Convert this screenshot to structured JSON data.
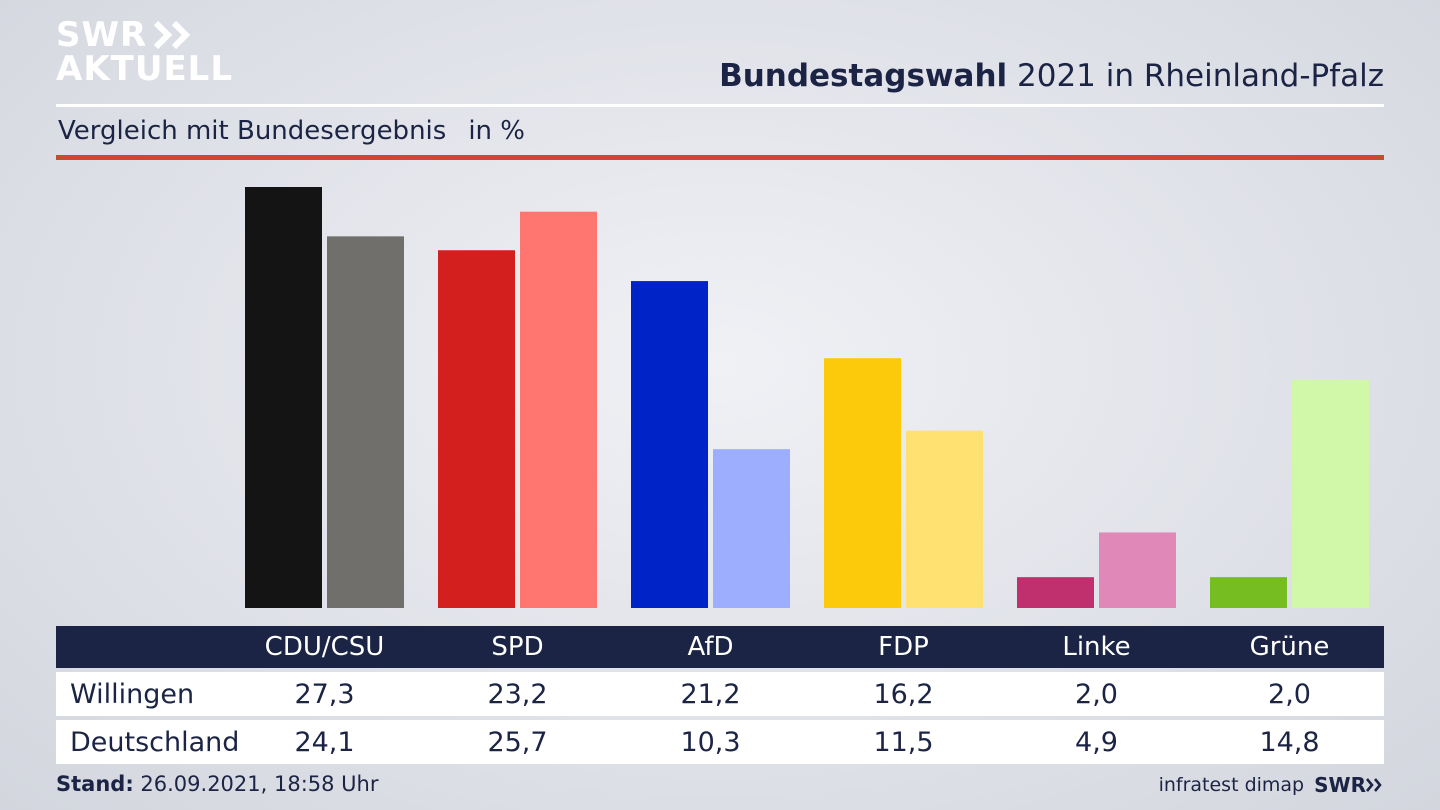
{
  "logo": {
    "line1": "SWR",
    "line2": "AKTUELL"
  },
  "header": {
    "title_bold": "Bundestagswahl",
    "title_rest": " 2021 in Rheinland-Pfalz"
  },
  "subtitle": {
    "text": "Vergleich mit Bundesergebnis",
    "unit": "in %"
  },
  "colors": {
    "navy": "#1b2444",
    "accent_red": "#d2452f"
  },
  "chart_data": {
    "type": "bar",
    "categories": [
      "CDU/CSU",
      "SPD",
      "AfD",
      "FDP",
      "Linke",
      "Grüne"
    ],
    "series": [
      {
        "name": "Willingen",
        "values": [
          27.3,
          23.2,
          21.2,
          16.2,
          2.0,
          2.0
        ],
        "colors": [
          "#141414",
          "#d41f1f",
          "#0023c7",
          "#fdc90b",
          "#c0306f",
          "#76bd22"
        ]
      },
      {
        "name": "Deutschland",
        "values": [
          24.1,
          25.7,
          10.3,
          11.5,
          4.9,
          14.8
        ],
        "colors": [
          "#706f6c",
          "#ff7670",
          "#9eaeff",
          "#fee170",
          "#e089b8",
          "#d1f7a9"
        ]
      }
    ],
    "value_labels": [
      [
        "27,3",
        "23,2",
        "21,2",
        "16,2",
        "2,0",
        "2,0"
      ],
      [
        "24,1",
        "25,7",
        "10,3",
        "11,5",
        "4,9",
        "14,8"
      ]
    ],
    "ylim": [
      0,
      27.3
    ],
    "grid": false,
    "legend": "none"
  },
  "footer": {
    "stand_label": "Stand:",
    "stand_value": " 26.09.2021, 18:58 Uhr",
    "source": "infratest dimap",
    "brand": "SWR"
  }
}
